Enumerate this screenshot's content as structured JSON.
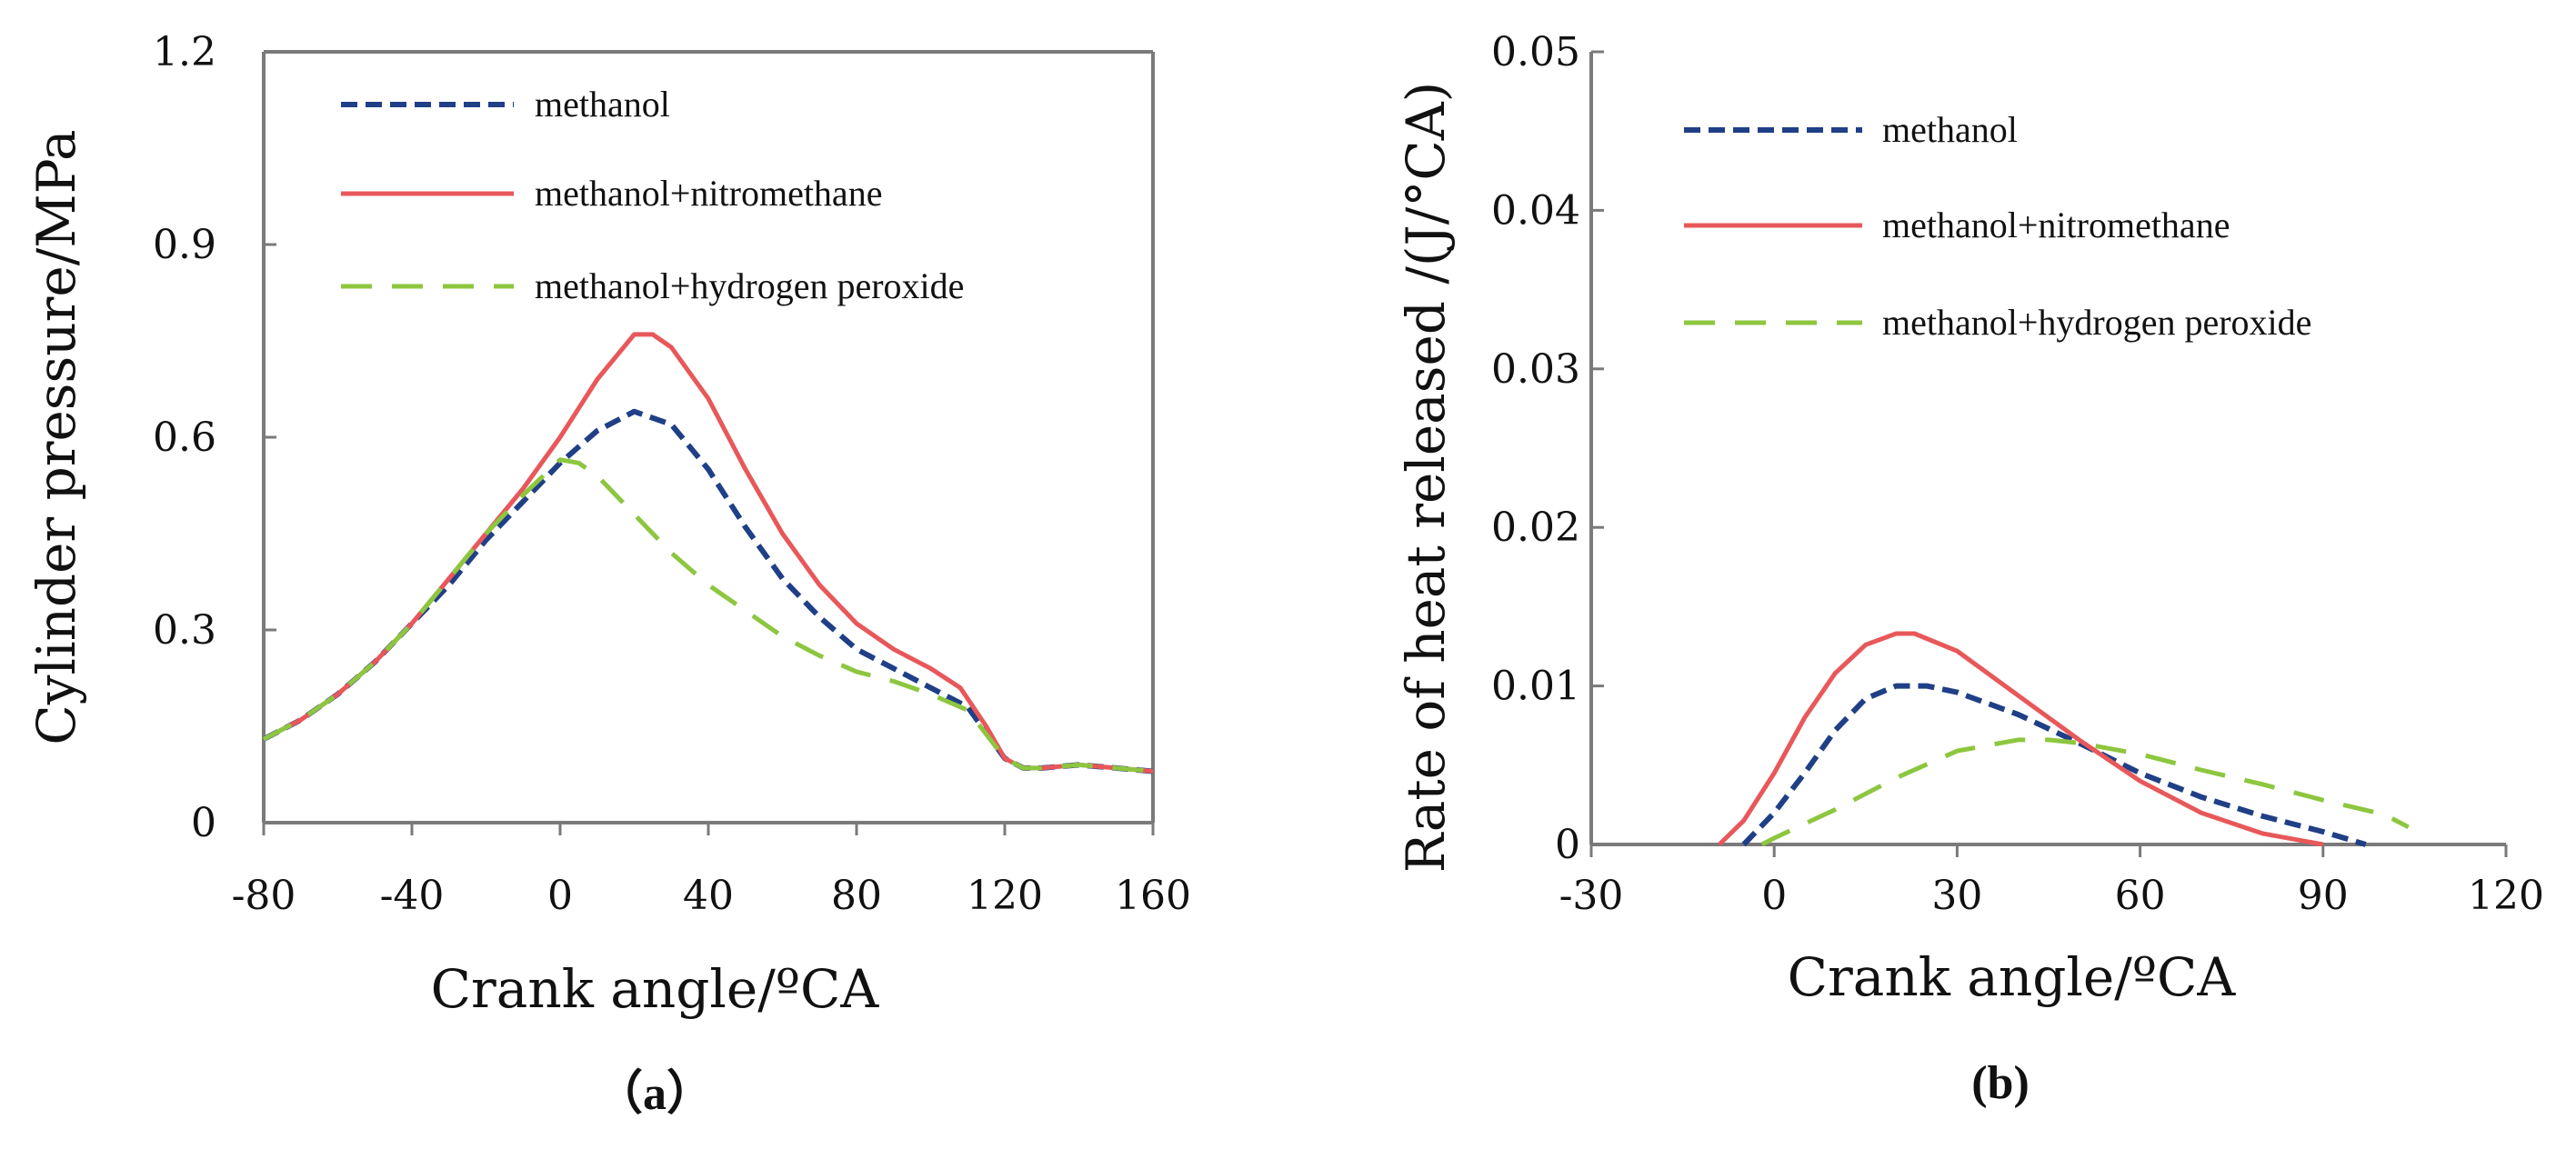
{
  "figure": {
    "captions": [
      "（a）",
      "(b)"
    ]
  },
  "colors": {
    "methanol": "#1f3f87",
    "methanol+nitromethane": "#e8585a",
    "methanol+hydrogen peroxide": "#8dc63f",
    "axis": "#7a7a7a"
  },
  "chart_data": [
    {
      "type": "line",
      "panel": "a",
      "title": "",
      "xlabel": "Crank angle/ºCA",
      "ylabel": "Cylinder pressure/MPa",
      "xlim": [
        -80,
        160
      ],
      "ylim": [
        0,
        1.2
      ],
      "xticks": [
        -80,
        -40,
        0,
        40,
        80,
        120,
        160
      ],
      "yticks": [
        0,
        0.3,
        0.6,
        0.9,
        1.2
      ],
      "xtick_labels": [
        "-80",
        "-40",
        "0",
        "40",
        "80",
        "120",
        "160"
      ],
      "ytick_labels": [
        "0",
        "0.3",
        "0.6",
        "0.9",
        "1.2"
      ],
      "legend": [
        "methanol",
        "methanol+nitromethane",
        "methanol+hydrogen peroxide"
      ],
      "legend_position": "top-left",
      "series": [
        {
          "name": "methanol",
          "style": "dotted",
          "x": [
            -80,
            -70,
            -60,
            -50,
            -40,
            -30,
            -20,
            -10,
            0,
            10,
            20,
            30,
            40,
            50,
            60,
            70,
            80,
            90,
            100,
            110,
            120,
            125,
            130,
            140,
            150,
            160
          ],
          "y": [
            0.13,
            0.16,
            0.2,
            0.25,
            0.31,
            0.37,
            0.44,
            0.5,
            0.56,
            0.61,
            0.64,
            0.62,
            0.55,
            0.46,
            0.38,
            0.32,
            0.27,
            0.24,
            0.21,
            0.18,
            0.1,
            0.085,
            0.085,
            0.09,
            0.085,
            0.08
          ]
        },
        {
          "name": "methanol+nitromethane",
          "style": "solid",
          "x": [
            -80,
            -70,
            -60,
            -50,
            -40,
            -30,
            -20,
            -10,
            0,
            10,
            20,
            25,
            30,
            40,
            50,
            60,
            70,
            80,
            90,
            100,
            108,
            115,
            120,
            125,
            130,
            140,
            150,
            160
          ],
          "y": [
            0.13,
            0.16,
            0.2,
            0.25,
            0.31,
            0.38,
            0.45,
            0.52,
            0.6,
            0.69,
            0.76,
            0.76,
            0.74,
            0.66,
            0.55,
            0.45,
            0.37,
            0.31,
            0.27,
            0.24,
            0.21,
            0.15,
            0.1,
            0.085,
            0.085,
            0.09,
            0.085,
            0.08
          ]
        },
        {
          "name": "methanol+hydrogen peroxide",
          "style": "dashed",
          "x": [
            -80,
            -70,
            -60,
            -50,
            -40,
            -30,
            -20,
            -10,
            0,
            5,
            10,
            20,
            30,
            40,
            50,
            60,
            70,
            80,
            90,
            100,
            110,
            120,
            125,
            130,
            140,
            150,
            160
          ],
          "y": [
            0.13,
            0.16,
            0.2,
            0.25,
            0.31,
            0.38,
            0.45,
            0.51,
            0.565,
            0.56,
            0.54,
            0.48,
            0.42,
            0.37,
            0.33,
            0.29,
            0.26,
            0.235,
            0.22,
            0.2,
            0.175,
            0.1,
            0.085,
            0.085,
            0.09,
            0.085,
            0.08
          ]
        }
      ]
    },
    {
      "type": "line",
      "panel": "b",
      "title": "",
      "xlabel": "Crank angle/ºCA",
      "ylabel": "Rate of heat released /(J/°CA)",
      "xlim": [
        -30,
        120
      ],
      "ylim": [
        0,
        0.05
      ],
      "xticks": [
        -30,
        0,
        30,
        60,
        90,
        120
      ],
      "yticks": [
        0,
        0.01,
        0.02,
        0.03,
        0.04,
        0.05
      ],
      "xtick_labels": [
        "-30",
        "0",
        "30",
        "60",
        "90",
        "120"
      ],
      "ytick_labels": [
        "0",
        "0.01",
        "0.02",
        "0.03",
        "0.04",
        "0.05"
      ],
      "legend": [
        "methanol",
        "methanol+nitromethane",
        "methanol+hydrogen peroxide"
      ],
      "legend_position": "top-left",
      "series": [
        {
          "name": "methanol",
          "style": "dotted",
          "x": [
            -5,
            0,
            5,
            10,
            15,
            20,
            25,
            30,
            40,
            50,
            60,
            70,
            80,
            90,
            97
          ],
          "y": [
            0,
            0.002,
            0.0045,
            0.0072,
            0.0092,
            0.01,
            0.01,
            0.0096,
            0.0082,
            0.0064,
            0.0045,
            0.003,
            0.0018,
            0.0008,
            0
          ]
        },
        {
          "name": "methanol+nitromethane",
          "style": "solid",
          "x": [
            -9,
            -5,
            0,
            5,
            10,
            15,
            20,
            23,
            30,
            40,
            50,
            60,
            70,
            80,
            90
          ],
          "y": [
            0,
            0.0015,
            0.0045,
            0.008,
            0.0108,
            0.0126,
            0.0133,
            0.0133,
            0.0122,
            0.0094,
            0.0066,
            0.004,
            0.002,
            0.0007,
            0
          ]
        },
        {
          "name": "methanol+hydrogen peroxide",
          "style": "dashed",
          "x": [
            -2,
            0,
            10,
            20,
            30,
            40,
            45,
            50,
            60,
            70,
            80,
            90,
            100,
            104
          ],
          "y": [
            0,
            0.0004,
            0.0022,
            0.0042,
            0.0059,
            0.0066,
            0.0066,
            0.0064,
            0.0057,
            0.0047,
            0.0038,
            0.0028,
            0.0019,
            0.0011
          ]
        }
      ]
    }
  ]
}
